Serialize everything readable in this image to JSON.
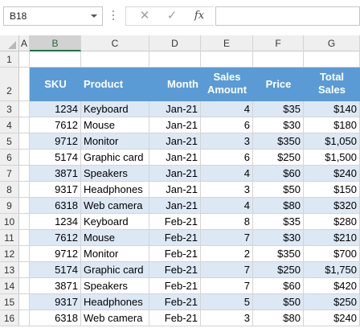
{
  "name_box": "B18",
  "formula_bar": {
    "cancel_icon": "✕",
    "enter_icon": "✓",
    "fx_label": "fx",
    "value": ""
  },
  "columns": [
    "A",
    "B",
    "C",
    "D",
    "E",
    "F",
    "G"
  ],
  "selected_column": "B",
  "row_numbers": [
    "1",
    "2",
    "3",
    "4",
    "5",
    "6",
    "7",
    "8",
    "9",
    "10",
    "11",
    "12",
    "13",
    "14",
    "15",
    "16"
  ],
  "table": {
    "headers": [
      "SKU",
      "Product",
      "Month",
      "Sales Amount",
      "Price",
      "Total Sales"
    ],
    "rows": [
      [
        "1234",
        "Keyboard",
        "Jan-21",
        "4",
        "$35",
        "$140"
      ],
      [
        "7612",
        "Mouse",
        "Jan-21",
        "6",
        "$30",
        "$180"
      ],
      [
        "9712",
        "Monitor",
        "Jan-21",
        "3",
        "$350",
        "$1,050"
      ],
      [
        "5174",
        "Graphic card",
        "Jan-21",
        "6",
        "$250",
        "$1,500"
      ],
      [
        "3871",
        "Speakers",
        "Jan-21",
        "4",
        "$60",
        "$240"
      ],
      [
        "9317",
        "Headphones",
        "Jan-21",
        "3",
        "$50",
        "$150"
      ],
      [
        "6318",
        "Web camera",
        "Jan-21",
        "4",
        "$80",
        "$320"
      ],
      [
        "1234",
        "Keyboard",
        "Feb-21",
        "8",
        "$35",
        "$280"
      ],
      [
        "7612",
        "Mouse",
        "Feb-21",
        "7",
        "$30",
        "$210"
      ],
      [
        "9712",
        "Monitor",
        "Feb-21",
        "2",
        "$350",
        "$700"
      ],
      [
        "5174",
        "Graphic card",
        "Feb-21",
        "7",
        "$250",
        "$1,750"
      ],
      [
        "3871",
        "Speakers",
        "Feb-21",
        "7",
        "$60",
        "$420"
      ],
      [
        "9317",
        "Headphones",
        "Feb-21",
        "5",
        "$50",
        "$250"
      ],
      [
        "6318",
        "Web camera",
        "Feb-21",
        "3",
        "$80",
        "$240"
      ]
    ]
  },
  "colors": {
    "header_fill": "#5b9bd5",
    "band_fill": "#dde8f5",
    "selected_col_accent": "#217346"
  }
}
